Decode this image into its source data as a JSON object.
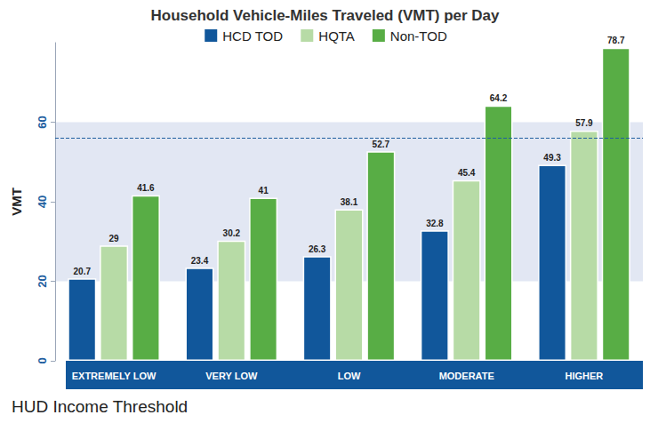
{
  "chart_data": {
    "type": "bar",
    "title": "Household Vehicle-Miles Traveled (VMT) per Day",
    "x_label": "HUD Income Threshold",
    "y_label": "VMT",
    "categories": [
      "EXTREMELY LOW",
      "VERY LOW",
      "LOW",
      "MODERATE",
      "HIGHER"
    ],
    "series": [
      {
        "name": "HCD TOD",
        "color": "#11579b",
        "values": [
          20.7,
          23.4,
          26.3,
          32.8,
          49.3
        ]
      },
      {
        "name": "HQTA",
        "color": "#b7dba6",
        "values": [
          29,
          30.2,
          38.1,
          45.4,
          57.9
        ]
      },
      {
        "name": "Non-TOD",
        "color": "#58ad45",
        "values": [
          41.6,
          41,
          52.7,
          64.2,
          78.7
        ]
      }
    ],
    "ylim": [
      0,
      80
    ],
    "yticks": [
      0,
      20,
      40,
      60
    ],
    "reference_line": 56,
    "shaded_band": [
      20,
      60
    ],
    "grid": false,
    "legend": "top",
    "data_labels": true
  }
}
